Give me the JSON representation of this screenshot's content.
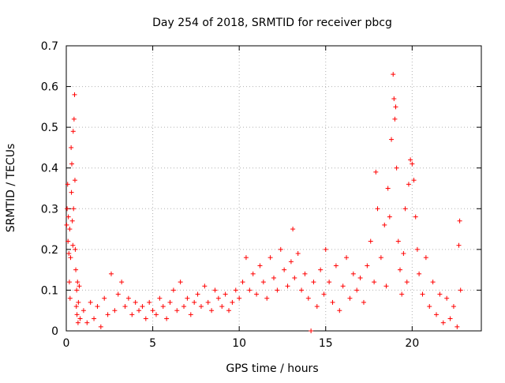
{
  "chart_data": {
    "type": "scatter",
    "title": "Day 254 of 2018, SRMTID for receiver pbcg",
    "xlabel": "GPS time / hours",
    "ylabel": "SRMTID / TECUs",
    "xlim": [
      0,
      24
    ],
    "ylim": [
      0,
      0.7
    ],
    "xticks": [
      0,
      5,
      10,
      15,
      20
    ],
    "yticks": [
      0,
      0.1,
      0.2,
      0.3,
      0.4,
      0.5,
      0.6,
      0.7
    ],
    "xtick_labels": [
      "0",
      "5",
      "10",
      "15",
      "20"
    ],
    "ytick_labels": [
      "0",
      "0.1",
      "0.2",
      "0.3",
      "0.4",
      "0.5",
      "0.6",
      "0.7"
    ],
    "grid": true,
    "marker": "plus",
    "color": "#ff0000",
    "series": [
      {
        "name": "SRMTID",
        "points": [
          [
            0.02,
            0.26
          ],
          [
            0.05,
            0.3
          ],
          [
            0.08,
            0.36
          ],
          [
            0.1,
            0.22
          ],
          [
            0.12,
            0.28
          ],
          [
            0.15,
            0.19
          ],
          [
            0.18,
            0.12
          ],
          [
            0.2,
            0.25
          ],
          [
            0.22,
            0.08
          ],
          [
            0.25,
            0.18
          ],
          [
            0.28,
            0.45
          ],
          [
            0.3,
            0.34
          ],
          [
            0.32,
            0.41
          ],
          [
            0.35,
            0.27
          ],
          [
            0.38,
            0.21
          ],
          [
            0.4,
            0.49
          ],
          [
            0.42,
            0.3
          ],
          [
            0.45,
            0.52
          ],
          [
            0.48,
            0.58
          ],
          [
            0.5,
            0.37
          ],
          [
            0.52,
            0.2
          ],
          [
            0.55,
            0.15
          ],
          [
            0.58,
            0.06
          ],
          [
            0.6,
            0.1
          ],
          [
            0.62,
            0.04
          ],
          [
            0.65,
            0.12
          ],
          [
            0.68,
            0.02
          ],
          [
            0.7,
            0.07
          ],
          [
            0.75,
            0.11
          ],
          [
            0.8,
            0.03
          ],
          [
            1.0,
            0.05
          ],
          [
            1.2,
            0.02
          ],
          [
            1.4,
            0.07
          ],
          [
            1.6,
            0.03
          ],
          [
            1.8,
            0.06
          ],
          [
            2.0,
            0.01
          ],
          [
            2.2,
            0.08
          ],
          [
            2.4,
            0.04
          ],
          [
            2.6,
            0.14
          ],
          [
            2.8,
            0.05
          ],
          [
            3.0,
            0.09
          ],
          [
            3.2,
            0.12
          ],
          [
            3.4,
            0.06
          ],
          [
            3.6,
            0.08
          ],
          [
            3.8,
            0.04
          ],
          [
            4.0,
            0.07
          ],
          [
            4.2,
            0.05
          ],
          [
            4.4,
            0.06
          ],
          [
            4.6,
            0.03
          ],
          [
            4.8,
            0.07
          ],
          [
            5.0,
            0.05
          ],
          [
            5.2,
            0.04
          ],
          [
            5.4,
            0.08
          ],
          [
            5.6,
            0.06
          ],
          [
            5.8,
            0.03
          ],
          [
            6.0,
            0.07
          ],
          [
            6.2,
            0.1
          ],
          [
            6.4,
            0.05
          ],
          [
            6.6,
            0.12
          ],
          [
            6.8,
            0.06
          ],
          [
            7.0,
            0.08
          ],
          [
            7.2,
            0.04
          ],
          [
            7.4,
            0.07
          ],
          [
            7.6,
            0.09
          ],
          [
            7.8,
            0.06
          ],
          [
            8.0,
            0.11
          ],
          [
            8.2,
            0.07
          ],
          [
            8.4,
            0.05
          ],
          [
            8.6,
            0.1
          ],
          [
            8.8,
            0.08
          ],
          [
            9.0,
            0.06
          ],
          [
            9.2,
            0.09
          ],
          [
            9.4,
            0.05
          ],
          [
            9.6,
            0.07
          ],
          [
            9.8,
            0.1
          ],
          [
            10.0,
            0.08
          ],
          [
            10.2,
            0.12
          ],
          [
            10.4,
            0.18
          ],
          [
            10.6,
            0.1
          ],
          [
            10.8,
            0.14
          ],
          [
            11.0,
            0.09
          ],
          [
            11.2,
            0.16
          ],
          [
            11.4,
            0.12
          ],
          [
            11.6,
            0.08
          ],
          [
            11.8,
            0.18
          ],
          [
            12.0,
            0.13
          ],
          [
            12.2,
            0.1
          ],
          [
            12.4,
            0.2
          ],
          [
            12.6,
            0.15
          ],
          [
            12.8,
            0.11
          ],
          [
            13.0,
            0.17
          ],
          [
            13.1,
            0.25
          ],
          [
            13.2,
            0.13
          ],
          [
            13.4,
            0.19
          ],
          [
            13.6,
            0.1
          ],
          [
            13.8,
            0.14
          ],
          [
            14.0,
            0.08
          ],
          [
            14.15,
            0.0
          ],
          [
            14.3,
            0.12
          ],
          [
            14.5,
            0.06
          ],
          [
            14.7,
            0.15
          ],
          [
            14.9,
            0.09
          ],
          [
            15.0,
            0.2
          ],
          [
            15.2,
            0.12
          ],
          [
            15.4,
            0.07
          ],
          [
            15.6,
            0.16
          ],
          [
            15.8,
            0.05
          ],
          [
            16.0,
            0.11
          ],
          [
            16.2,
            0.18
          ],
          [
            16.4,
            0.08
          ],
          [
            16.6,
            0.14
          ],
          [
            16.8,
            0.1
          ],
          [
            17.0,
            0.13
          ],
          [
            17.2,
            0.07
          ],
          [
            17.4,
            0.16
          ],
          [
            17.6,
            0.22
          ],
          [
            17.8,
            0.12
          ],
          [
            17.9,
            0.39
          ],
          [
            18.0,
            0.3
          ],
          [
            18.2,
            0.18
          ],
          [
            18.4,
            0.26
          ],
          [
            18.5,
            0.11
          ],
          [
            18.6,
            0.35
          ],
          [
            18.7,
            0.28
          ],
          [
            18.8,
            0.47
          ],
          [
            18.9,
            0.63
          ],
          [
            18.95,
            0.57
          ],
          [
            19.0,
            0.52
          ],
          [
            19.05,
            0.55
          ],
          [
            19.1,
            0.4
          ],
          [
            19.2,
            0.22
          ],
          [
            19.3,
            0.15
          ],
          [
            19.4,
            0.09
          ],
          [
            19.5,
            0.19
          ],
          [
            19.6,
            0.3
          ],
          [
            19.7,
            0.12
          ],
          [
            19.8,
            0.36
          ],
          [
            19.9,
            0.42
          ],
          [
            20.0,
            0.41
          ],
          [
            20.1,
            0.37
          ],
          [
            20.2,
            0.28
          ],
          [
            20.3,
            0.2
          ],
          [
            20.4,
            0.14
          ],
          [
            20.6,
            0.09
          ],
          [
            20.8,
            0.18
          ],
          [
            21.0,
            0.06
          ],
          [
            21.2,
            0.12
          ],
          [
            21.4,
            0.04
          ],
          [
            21.6,
            0.09
          ],
          [
            21.8,
            0.02
          ],
          [
            22.0,
            0.08
          ],
          [
            22.2,
            0.03
          ],
          [
            22.4,
            0.06
          ],
          [
            22.6,
            0.01
          ],
          [
            22.7,
            0.21
          ],
          [
            22.75,
            0.27
          ],
          [
            22.8,
            0.1
          ]
        ]
      }
    ]
  }
}
